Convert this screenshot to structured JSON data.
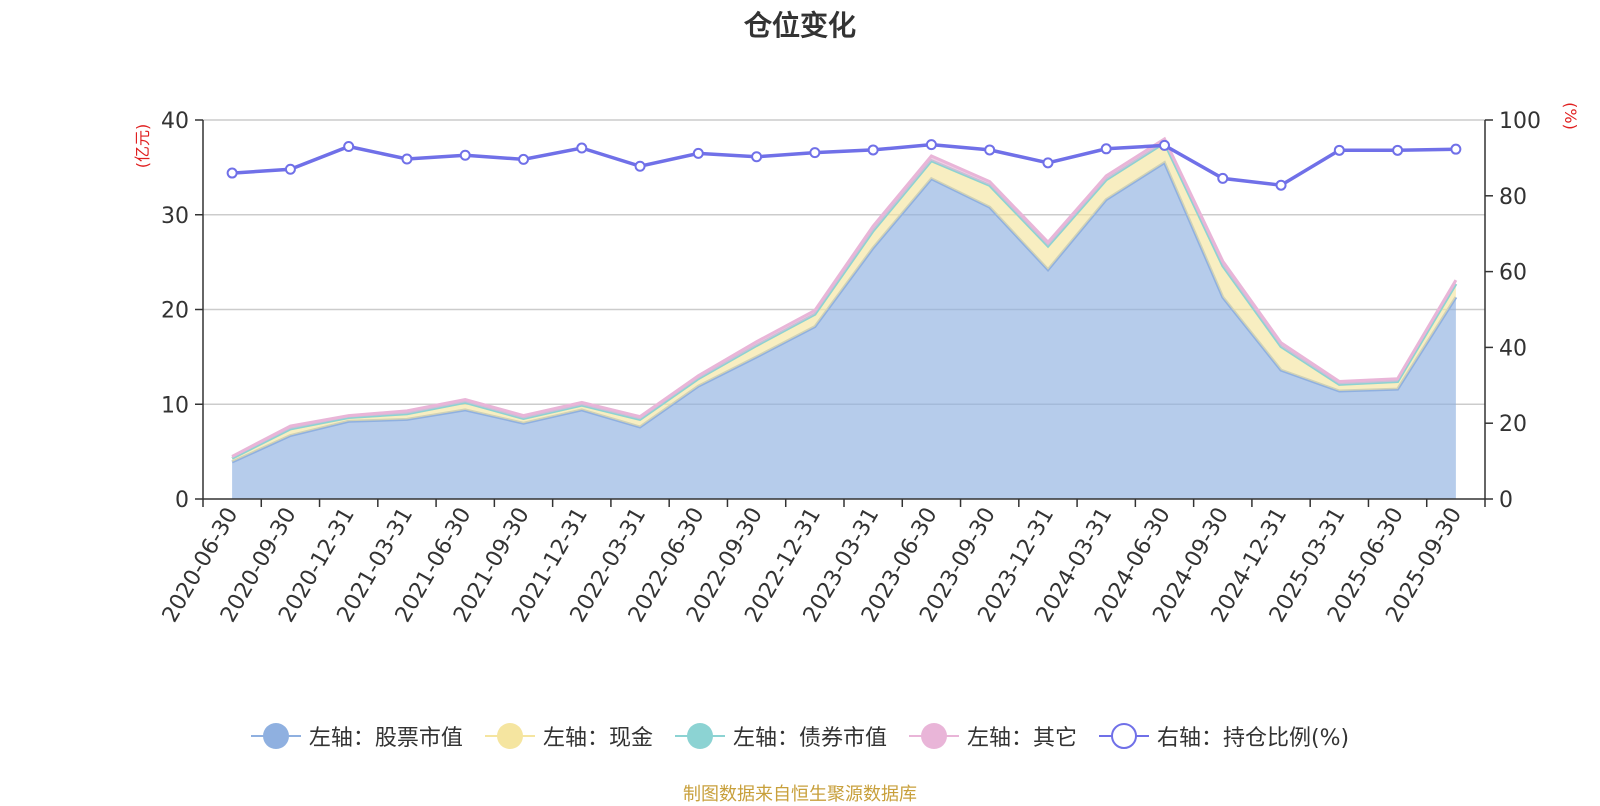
{
  "chart_data": {
    "type": "area",
    "title": "仓位变化",
    "x": [
      "2020-06-30",
      "2020-09-30",
      "2020-12-31",
      "2021-03-31",
      "2021-06-30",
      "2021-09-30",
      "2021-12-31",
      "2022-03-31",
      "2022-06-30",
      "2022-09-30",
      "2022-12-31",
      "2023-03-31",
      "2023-06-30",
      "2023-09-30",
      "2023-12-31",
      "2024-03-31",
      "2024-06-30",
      "2024-09-30",
      "2024-12-31",
      "2025-03-31",
      "2025-06-30",
      "2025-09-30"
    ],
    "left_axis": {
      "label": "(亿元)",
      "ticks": [
        "0",
        "10",
        "20",
        "30",
        "40"
      ],
      "ylim": [
        0,
        40
      ]
    },
    "right_axis": {
      "label": "(%)",
      "ticks": [
        "0",
        "20",
        "40",
        "60",
        "80",
        "100"
      ],
      "ylim": [
        0,
        100
      ]
    },
    "series": [
      {
        "name": "左轴：股票市值",
        "axis": "left",
        "color": "#8fb0e0",
        "values": [
          3.9,
          6.7,
          8.2,
          8.4,
          9.4,
          8.0,
          9.4,
          7.6,
          11.9,
          15.0,
          18.2,
          26.5,
          33.8,
          30.8,
          24.2,
          31.6,
          35.5,
          21.3,
          13.6,
          11.4,
          11.6,
          21.3
        ]
      },
      {
        "name": "左轴：现金",
        "axis": "left",
        "color": "#f5e5a0",
        "values": [
          0.4,
          0.7,
          0.4,
          0.6,
          0.8,
          0.5,
          0.5,
          0.8,
          0.8,
          1.2,
          1.3,
          1.8,
          1.9,
          2.3,
          2.5,
          2.1,
          2.1,
          3.3,
          2.5,
          0.7,
          0.8,
          1.4
        ]
      },
      {
        "name": "左轴：债券市值",
        "axis": "left",
        "color": "#8cd3d3",
        "values": [
          0,
          0,
          0,
          0,
          0,
          0,
          0,
          0,
          0,
          0,
          0,
          0,
          0,
          0,
          0,
          0,
          0,
          0,
          0,
          0,
          0,
          0
        ]
      },
      {
        "name": "左轴：其它",
        "axis": "left",
        "color": "#e9b5d8",
        "values": [
          0.2,
          0.3,
          0.2,
          0.3,
          0.3,
          0.3,
          0.3,
          0.3,
          0.3,
          0.4,
          0.4,
          0.5,
          0.5,
          0.4,
          0.4,
          0.4,
          0.4,
          0.5,
          0.4,
          0.3,
          0.3,
          0.4
        ]
      },
      {
        "name": "右轴：持仓比例(%)",
        "axis": "right",
        "color": "#7070e8",
        "values": [
          86.0,
          87.0,
          93.0,
          89.7,
          90.7,
          89.6,
          92.6,
          87.8,
          91.2,
          90.3,
          91.4,
          92.1,
          93.5,
          92.1,
          88.7,
          92.4,
          93.3,
          84.6,
          82.8,
          92.0,
          92.0,
          92.3
        ]
      }
    ],
    "grid": true,
    "legend_position": "bottom"
  },
  "source_note": "制图数据来自恒生聚源数据库"
}
